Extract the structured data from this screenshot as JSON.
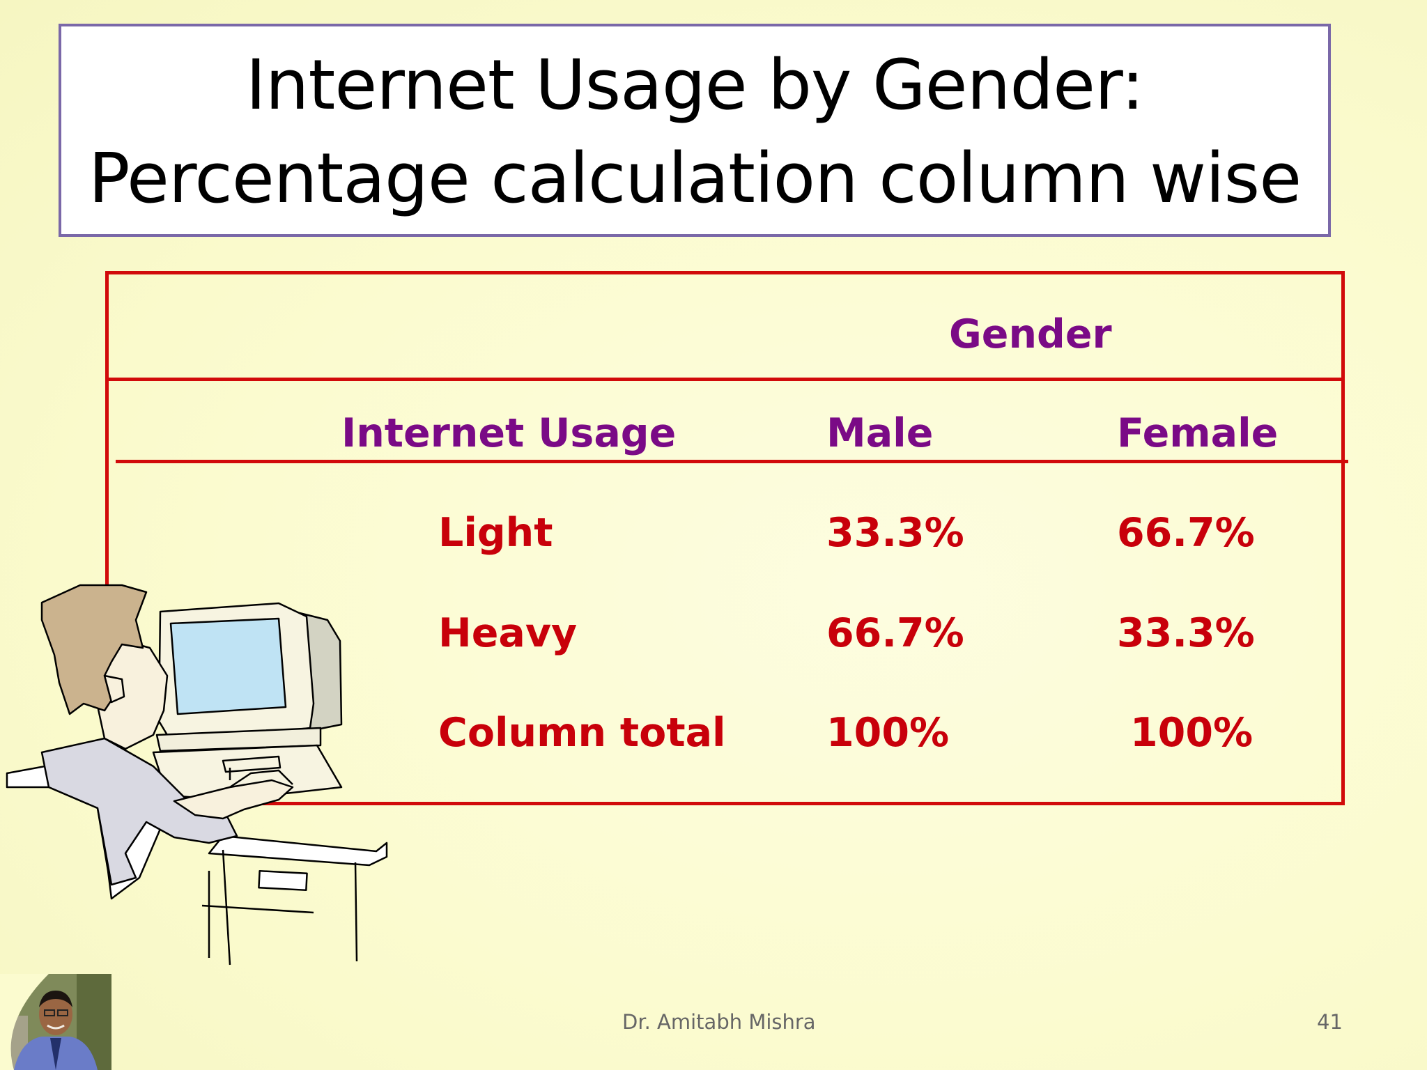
{
  "slide": {
    "title": "Internet Usage by Gender: Percentage calculation column wise",
    "table": {
      "group_header": "Gender",
      "row_header": "Internet Usage",
      "columns": [
        "Male",
        "Female"
      ],
      "rows": [
        {
          "label": "Light",
          "values": [
            "33.3%",
            "66.7%"
          ]
        },
        {
          "label": "Heavy",
          "values": [
            "66.7%",
            "33.3%"
          ]
        },
        {
          "label": "Column total",
          "values": [
            "100%",
            "100%"
          ]
        }
      ]
    },
    "footer": {
      "author": "Dr. Amitabh Mishra",
      "page_number": "41"
    },
    "colors": {
      "header_text": "#7a0a86",
      "body_text": "#c8000a",
      "table_border": "#d10a0a",
      "title_border": "#7a68a8"
    }
  }
}
